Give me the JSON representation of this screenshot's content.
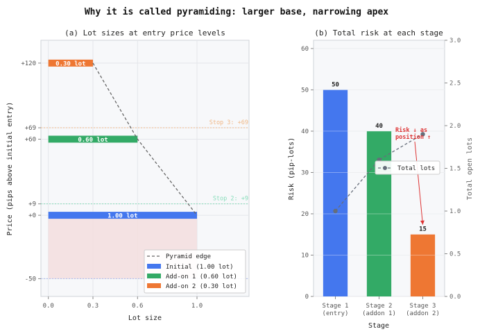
{
  "figure_title": "Why it is called pyramiding: larger base, narrowing apex",
  "colors": {
    "blue": "#4477ee",
    "green": "#33aa66",
    "orange": "#ee7733",
    "edge": "#666666",
    "red_annot": "#dd3333",
    "stop3": "#f0b888",
    "stop2": "#88ddbb",
    "stop1": "#aabbee",
    "shade": "#f3dede",
    "panel_bg": "#f7f8fa",
    "line": "#666e7a"
  },
  "chart_data": [
    {
      "type": "bar",
      "orientation": "horizontal",
      "title": "(a) Lot sizes at entry price levels",
      "xlabel": "Lot size",
      "ylabel": "Price (pips above initial entry)",
      "xlim": [
        -0.05,
        1.35
      ],
      "ylim": [
        -64,
        138
      ],
      "xticks": [
        0.0,
        0.3,
        0.6,
        1.0
      ],
      "xtick_labels": [
        "0.0",
        "0.3",
        "0.6",
        "1.0"
      ],
      "yticks": [
        -50,
        0,
        9,
        60,
        69,
        120
      ],
      "ytick_labels": [
        "-50",
        "+0",
        "+9",
        "+60",
        "+69",
        "+120"
      ],
      "bars": [
        {
          "series": "Initial (1.00 lot)",
          "price": 0,
          "lots": 1.0,
          "label": "1.00 lot",
          "color_key": "blue"
        },
        {
          "series": "Add-on 1 (0.60 lot)",
          "price": 60,
          "lots": 0.6,
          "label": "0.60 lot",
          "color_key": "green"
        },
        {
          "series": "Add-on 2 (0.30 lot)",
          "price": 120,
          "lots": 0.3,
          "label": "0.30 lot",
          "color_key": "orange"
        }
      ],
      "pyramid_edge": {
        "name": "Pyramid edge",
        "points": [
          [
            0.3,
            120
          ],
          [
            0.6,
            60
          ],
          [
            1.0,
            0
          ]
        ]
      },
      "stops": [
        {
          "price": 69,
          "label": "Stop 3: +69",
          "color_key": "stop3"
        },
        {
          "price": 9,
          "label": "Stop 2: +9",
          "color_key": "stop2"
        },
        {
          "price": -50,
          "label": "",
          "color_key": "stop1"
        }
      ],
      "shaded_region": {
        "x": [
          0,
          1.0
        ],
        "y": [
          -50,
          0
        ]
      },
      "legend": {
        "position": "lower-right",
        "entries": [
          "Pyramid edge",
          "Initial (1.00 lot)",
          "Add-on 1 (0.60 lot)",
          "Add-on 2 (0.30 lot)"
        ]
      },
      "grid": true
    },
    {
      "type": "bar",
      "title": "(b) Total risk at each stage",
      "xlabel": "Stage",
      "ylabel": "Risk (pip-lots)",
      "y2label": "Total open lots",
      "categories": [
        "Stage 1\n(entry)",
        "Stage 2\n(addon 1)",
        "Stage 3\n(addon 2)"
      ],
      "values": [
        50,
        40,
        15
      ],
      "value_labels": [
        "50",
        "40",
        "15"
      ],
      "bar_color_keys": [
        "blue",
        "green",
        "orange"
      ],
      "ylim": [
        0,
        62
      ],
      "yticks": [
        0,
        10,
        20,
        30,
        40,
        50,
        60
      ],
      "y2lim": [
        0,
        3.0
      ],
      "y2ticks": [
        "0.0",
        "0.5",
        "1.0",
        "1.5",
        "2.0",
        "2.5",
        "3.0"
      ],
      "series": [
        {
          "name": "Total lots",
          "values": [
            1.0,
            1.6,
            1.9
          ],
          "axis": "right"
        }
      ],
      "annotation": {
        "text": [
          "Risk ↓ as",
          "position ↑"
        ],
        "points_to_category": 2,
        "points_to_value": 15
      },
      "legend": {
        "position": "center-right",
        "entries": [
          "Total lots"
        ]
      },
      "grid": true
    }
  ]
}
